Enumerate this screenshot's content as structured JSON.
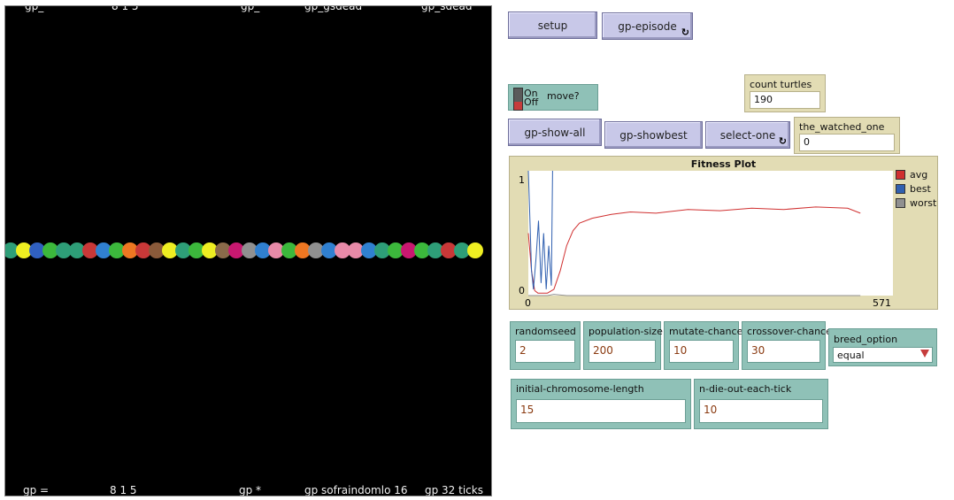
{
  "world": {
    "top_labels": [
      "gp_",
      "8 1 5",
      "gp_",
      "gp_gsdead",
      "gp_sdead"
    ],
    "bottom_labels": [
      "gp =",
      "8 1 5",
      "gp *",
      "gp sofraindomlo 16",
      "gp 32 ticks"
    ],
    "turtle_colors": [
      "#2e9e78",
      "#eeee22",
      "#3060c0",
      "#3cb83c",
      "#2e9e78",
      "#2e9e78",
      "#c83838",
      "#3080d0",
      "#3cb83c",
      "#ee7722",
      "#c83838",
      "#8a5a3a",
      "#eeee22",
      "#2e9e78",
      "#3cb83c",
      "#eeee22",
      "#8a6a4a",
      "#c81870",
      "#909090",
      "#3080d0",
      "#e88aa8",
      "#3cb83c",
      "#ee7722",
      "#909090",
      "#3080d0",
      "#e88aa8",
      "#e88aa8",
      "#3080d0",
      "#2e9e78",
      "#3cb83c",
      "#c81870",
      "#3cb83c",
      "#2e9e78",
      "#c83838",
      "#2e9e78",
      "#eeee22"
    ]
  },
  "buttons": {
    "setup": "setup",
    "gp_episode": "gp-episode",
    "gp_show_all": "gp-show-all",
    "gp_showbest": "gp-showbest",
    "select_one": "select-one",
    "forever_glyph": "↻"
  },
  "switch": {
    "on": "On",
    "off": "Off",
    "name": "move?"
  },
  "monitors": {
    "count_turtles": {
      "label": "count turtles",
      "value": "190"
    },
    "watched_one": {
      "label": "the_watched_one",
      "value": "0"
    }
  },
  "plot": {
    "title": "Fitness Plot",
    "y_min": "0",
    "y_max": "1",
    "x_min": "0",
    "x_max": "571",
    "legend": [
      {
        "name": "avg",
        "color": "#d03030"
      },
      {
        "name": "best",
        "color": "#3060b0"
      },
      {
        "name": "worst",
        "color": "#909090"
      }
    ]
  },
  "chart_data": {
    "type": "line",
    "title": "Fitness Plot",
    "xlim": [
      0,
      571
    ],
    "ylim": [
      0,
      1
    ],
    "series": [
      {
        "name": "avg",
        "color": "#d03030",
        "x": [
          0,
          5,
          10,
          15,
          20,
          30,
          40,
          50,
          60,
          70,
          80,
          100,
          130,
          160,
          200,
          250,
          300,
          350,
          400,
          450,
          500,
          520
        ],
        "y": [
          0.5,
          0.2,
          0.04,
          0.02,
          0.02,
          0.02,
          0.05,
          0.2,
          0.4,
          0.52,
          0.58,
          0.62,
          0.65,
          0.67,
          0.66,
          0.69,
          0.68,
          0.7,
          0.69,
          0.71,
          0.7,
          0.66
        ]
      },
      {
        "name": "best",
        "color": "#3060b0",
        "x": [
          0,
          2,
          5,
          8,
          12,
          16,
          20,
          24,
          28,
          32,
          36,
          38
        ],
        "y": [
          1,
          0.7,
          0.2,
          0.05,
          0.3,
          0.6,
          0.1,
          0.5,
          0.05,
          0.4,
          0.08,
          1
        ]
      },
      {
        "name": "worst",
        "color": "#909090",
        "x": [
          0,
          30,
          40,
          60,
          100,
          150,
          200,
          300,
          400,
          520
        ],
        "y": [
          0,
          0.0,
          0.01,
          0.0,
          0.0,
          0.0,
          0.0,
          0.0,
          0.0,
          0.0
        ]
      }
    ]
  },
  "inputs": {
    "randomseed": {
      "label": "randomseed",
      "value": "2"
    },
    "population_size": {
      "label": "population-size",
      "value": "200"
    },
    "mutate_chance": {
      "label": "mutate-chance",
      "value": "10"
    },
    "crossover_chance": {
      "label": "crossover-chance",
      "value": "30"
    },
    "initial_chromosome_length": {
      "label": "initial-chromosome-length",
      "value": "15"
    },
    "n_die_out_each_tick": {
      "label": "n-die-out-each-tick",
      "value": "10"
    }
  },
  "chooser": {
    "label": "breed_option",
    "value": "equal"
  }
}
